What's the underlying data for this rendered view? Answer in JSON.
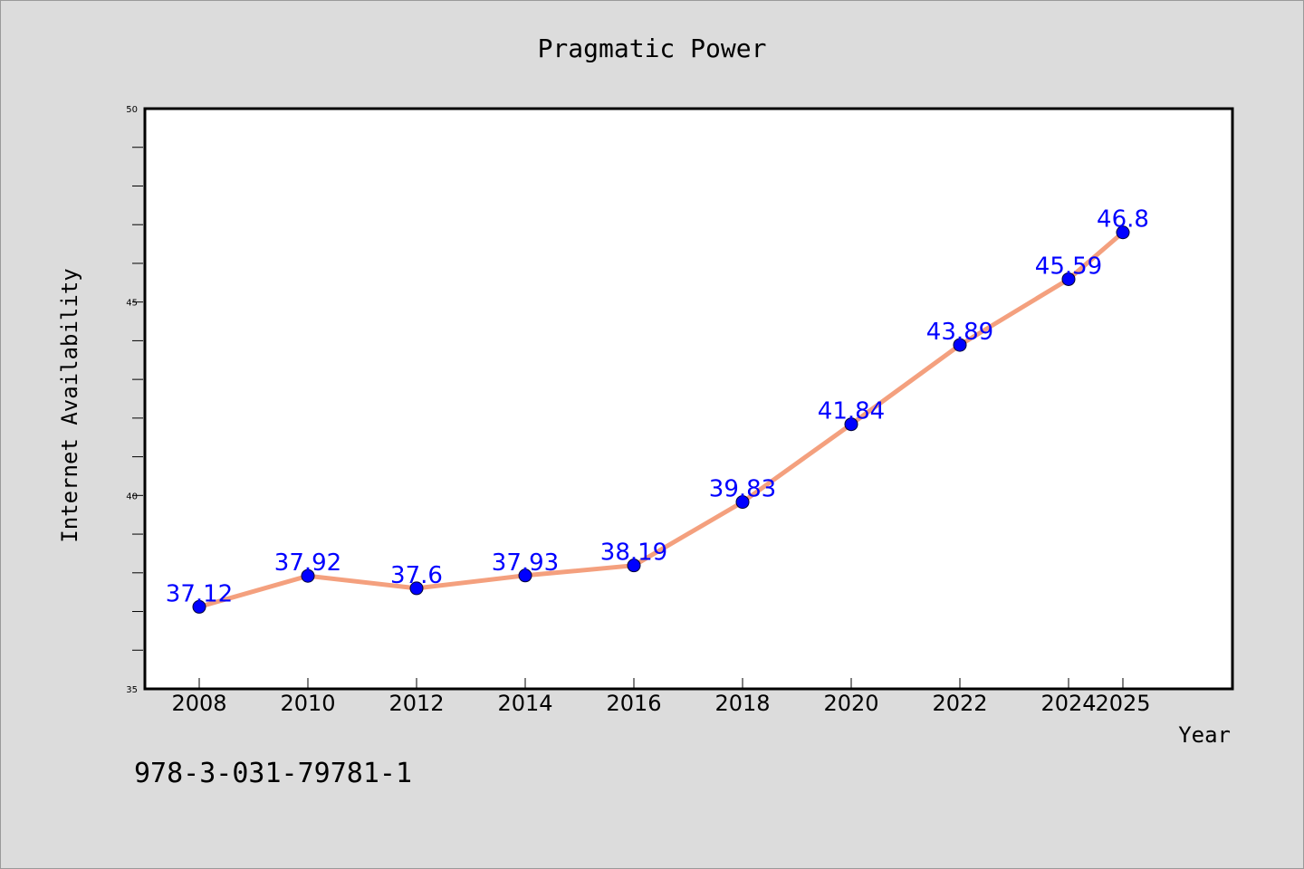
{
  "chart_data": {
    "type": "line",
    "title": "Pragmatic Power",
    "xlabel": "Year",
    "ylabel": "Internet Availability",
    "x": [
      "2008",
      "2010",
      "2012",
      "2014",
      "2016",
      "2018",
      "2020",
      "2022",
      "2024",
      "2025"
    ],
    "series": [
      {
        "values": [
          37.12,
          37.92,
          37.6,
          37.93,
          38.19,
          39.83,
          41.84,
          43.89,
          45.59,
          46.8
        ],
        "data_labels": [
          "37.12",
          "37.92",
          "37.6",
          "37.93",
          "38.19",
          "39.83",
          "41.84",
          "43.89",
          "45.59",
          "46.8"
        ],
        "line_color": "#f4a07e",
        "marker_color": "#0000ff"
      }
    ],
    "ylim": [
      35,
      50
    ],
    "yticks": [
      "35",
      "40",
      "45",
      "50"
    ],
    "grid": false,
    "legend": "none"
  },
  "footer_text": "978-3-031-79781-1",
  "colors": {
    "background": "#dcdcdc",
    "plot_background": "#ffffff",
    "line": "#f4a07e",
    "marker": "#0000ff",
    "data_label": "#0000ff"
  }
}
